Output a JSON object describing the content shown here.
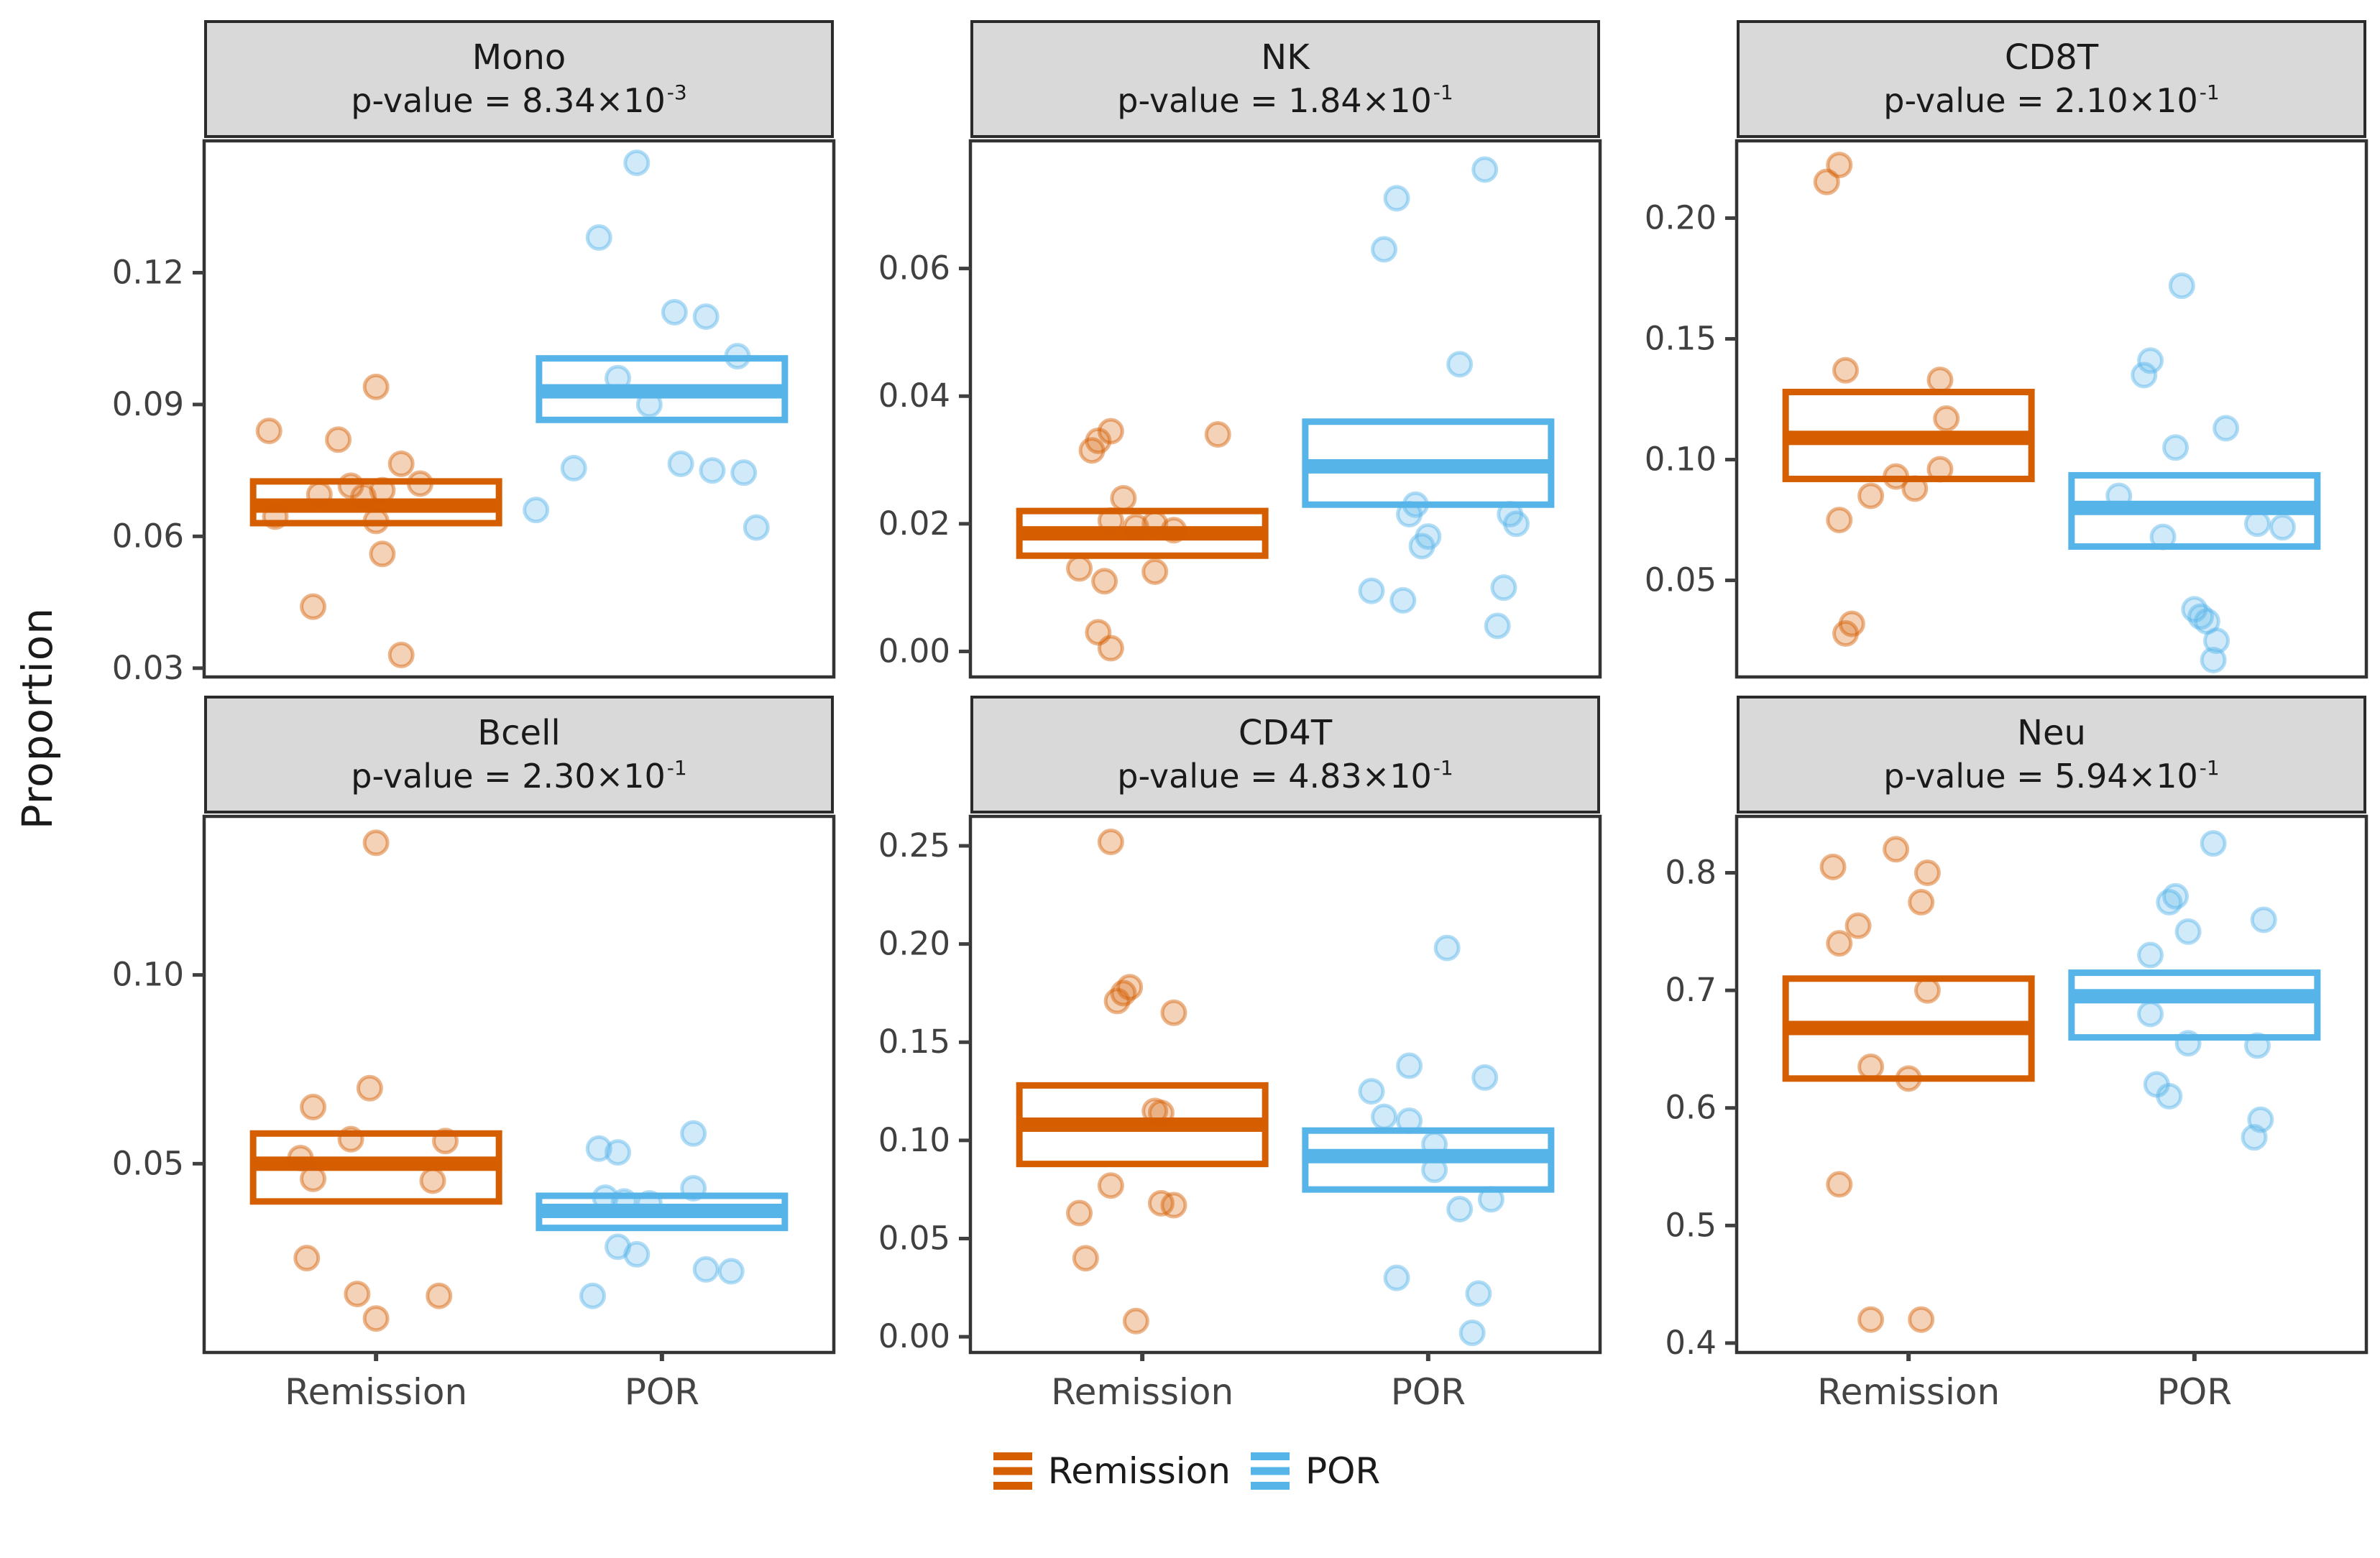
{
  "figure": {
    "ylab": "Proportion",
    "x_categories": [
      "Remission",
      "POR"
    ],
    "legend": [
      {
        "label": "Remission",
        "color": "#D55E00"
      },
      {
        "label": "POR",
        "color": "#56B4E9"
      }
    ],
    "strip_bg": "#d9d9d9",
    "panel_border": "#333333",
    "tick_color": "#404040"
  },
  "chart_data": [
    {
      "type": "scatter",
      "mark": "crossbar+jitter",
      "facet": "Mono",
      "pvalue_base": "p-value = 8.34×10",
      "pvalue_exp": "-3",
      "ylim": [
        0.028,
        0.15
      ],
      "yticks": [
        0.03,
        0.06,
        0.09,
        0.12
      ],
      "ytick_labels": [
        "0.03",
        "0.06",
        "0.09",
        "0.12"
      ],
      "groups": [
        {
          "name": "Remission",
          "color": "#D55E00",
          "box": {
            "lower": 0.063,
            "mid": 0.067,
            "upper": 0.0725
          },
          "points": [
            [
              -0.17,
              0.084
            ],
            [
              0.0,
              0.094
            ],
            [
              -0.06,
              0.082
            ],
            [
              0.04,
              0.0765
            ],
            [
              0.07,
              0.072
            ],
            [
              -0.04,
              0.0715
            ],
            [
              0.01,
              0.0705
            ],
            [
              -0.09,
              0.0695
            ],
            [
              -0.02,
              0.069
            ],
            [
              -0.16,
              0.0645
            ],
            [
              0.0,
              0.0635
            ],
            [
              0.01,
              0.056
            ],
            [
              -0.1,
              0.044
            ],
            [
              0.04,
              0.033
            ]
          ]
        },
        {
          "name": "POR",
          "color": "#56B4E9",
          "box": {
            "lower": 0.0865,
            "mid": 0.093,
            "upper": 0.1005
          },
          "points": [
            [
              -0.04,
              0.145
            ],
            [
              -0.1,
              0.128
            ],
            [
              0.02,
              0.111
            ],
            [
              0.07,
              0.11
            ],
            [
              0.12,
              0.101
            ],
            [
              -0.07,
              0.096
            ],
            [
              -0.02,
              0.09
            ],
            [
              -0.14,
              0.0755
            ],
            [
              0.03,
              0.0765
            ],
            [
              0.08,
              0.075
            ],
            [
              0.13,
              0.0745
            ],
            [
              -0.2,
              0.066
            ],
            [
              0.15,
              0.062
            ]
          ]
        }
      ]
    },
    {
      "type": "scatter",
      "mark": "crossbar+jitter",
      "facet": "NK",
      "pvalue_base": "p-value = 1.84×10",
      "pvalue_exp": "-1",
      "ylim": [
        -0.004,
        0.08
      ],
      "yticks": [
        0.0,
        0.02,
        0.04,
        0.06
      ],
      "ytick_labels": [
        "0.00",
        "0.02",
        "0.04",
        "0.06"
      ],
      "groups": [
        {
          "name": "Remission",
          "color": "#D55E00",
          "box": {
            "lower": 0.015,
            "mid": 0.0185,
            "upper": 0.022
          },
          "points": [
            [
              -0.05,
              0.0345
            ],
            [
              0.12,
              0.034
            ],
            [
              -0.07,
              0.033
            ],
            [
              -0.08,
              0.0315
            ],
            [
              -0.03,
              0.024
            ],
            [
              -0.05,
              0.0205
            ],
            [
              0.02,
              0.02
            ],
            [
              -0.01,
              0.0195
            ],
            [
              0.05,
              0.019
            ],
            [
              -0.1,
              0.013
            ],
            [
              0.02,
              0.0125
            ],
            [
              -0.06,
              0.011
            ],
            [
              -0.07,
              0.003
            ],
            [
              -0.05,
              0.0005
            ]
          ]
        },
        {
          "name": "POR",
          "color": "#56B4E9",
          "box": {
            "lower": 0.023,
            "mid": 0.029,
            "upper": 0.036
          },
          "points": [
            [
              0.09,
              0.0755
            ],
            [
              -0.05,
              0.071
            ],
            [
              -0.07,
              0.063
            ],
            [
              0.05,
              0.045
            ],
            [
              -0.02,
              0.023
            ],
            [
              -0.03,
              0.0215
            ],
            [
              0.13,
              0.0215
            ],
            [
              0.14,
              0.02
            ],
            [
              0.0,
              0.018
            ],
            [
              -0.01,
              0.0165
            ],
            [
              -0.09,
              0.0095
            ],
            [
              -0.04,
              0.008
            ],
            [
              0.12,
              0.01
            ],
            [
              0.11,
              0.004
            ]
          ]
        }
      ]
    },
    {
      "type": "scatter",
      "mark": "crossbar+jitter",
      "facet": "CD8T",
      "pvalue_base": "p-value = 2.10×10",
      "pvalue_exp": "-1",
      "ylim": [
        0.01,
        0.232
      ],
      "yticks": [
        0.05,
        0.1,
        0.15,
        0.2
      ],
      "ytick_labels": [
        "0.05",
        "0.10",
        "0.15",
        "0.20"
      ],
      "groups": [
        {
          "name": "Remission",
          "color": "#D55E00",
          "box": {
            "lower": 0.092,
            "mid": 0.109,
            "upper": 0.128
          },
          "points": [
            [
              -0.11,
              0.222
            ],
            [
              -0.13,
              0.215
            ],
            [
              -0.1,
              0.137
            ],
            [
              0.05,
              0.133
            ],
            [
              0.06,
              0.117
            ],
            [
              0.05,
              0.096
            ],
            [
              -0.02,
              0.093
            ],
            [
              0.01,
              0.088
            ],
            [
              -0.06,
              0.085
            ],
            [
              -0.11,
              0.075
            ],
            [
              -0.09,
              0.032
            ],
            [
              -0.1,
              0.028
            ]
          ]
        },
        {
          "name": "POR",
          "color": "#56B4E9",
          "box": {
            "lower": 0.064,
            "mid": 0.08,
            "upper": 0.0935
          },
          "points": [
            [
              -0.02,
              0.172
            ],
            [
              -0.07,
              0.141
            ],
            [
              -0.08,
              0.135
            ],
            [
              0.05,
              0.113
            ],
            [
              -0.03,
              0.105
            ],
            [
              -0.12,
              0.085
            ],
            [
              0.1,
              0.0735
            ],
            [
              0.14,
              0.072
            ],
            [
              -0.05,
              0.068
            ],
            [
              0.0,
              0.038
            ],
            [
              0.01,
              0.035
            ],
            [
              0.02,
              0.033
            ],
            [
              0.035,
              0.025
            ],
            [
              0.03,
              0.017
            ]
          ]
        }
      ]
    },
    {
      "type": "scatter",
      "mark": "crossbar+jitter",
      "facet": "Bcell",
      "pvalue_base": "p-value = 2.30×10",
      "pvalue_exp": "-1",
      "ylim": [
        0.0,
        0.142
      ],
      "yticks": [
        0.05,
        0.1
      ],
      "ytick_labels": [
        "0.05",
        "0.10"
      ],
      "groups": [
        {
          "name": "Remission",
          "color": "#D55E00",
          "box": {
            "lower": 0.04,
            "mid": 0.05,
            "upper": 0.058
          },
          "points": [
            [
              0.0,
              0.135
            ],
            [
              -0.01,
              0.07
            ],
            [
              -0.1,
              0.065
            ],
            [
              -0.04,
              0.0565
            ],
            [
              0.11,
              0.056
            ],
            [
              -0.12,
              0.0515
            ],
            [
              -0.1,
              0.046
            ],
            [
              0.09,
              0.0455
            ],
            [
              -0.11,
              0.025
            ],
            [
              -0.03,
              0.0155
            ],
            [
              0.1,
              0.015
            ],
            [
              0.0,
              0.009
            ]
          ]
        },
        {
          "name": "POR",
          "color": "#56B4E9",
          "box": {
            "lower": 0.033,
            "mid": 0.0375,
            "upper": 0.0415
          },
          "points": [
            [
              0.05,
              0.058
            ],
            [
              -0.1,
              0.054
            ],
            [
              -0.07,
              0.053
            ],
            [
              0.05,
              0.0435
            ],
            [
              -0.09,
              0.041
            ],
            [
              -0.06,
              0.04
            ],
            [
              -0.02,
              0.0395
            ],
            [
              -0.07,
              0.028
            ],
            [
              -0.04,
              0.026
            ],
            [
              0.07,
              0.022
            ],
            [
              0.11,
              0.0215
            ],
            [
              -0.11,
              0.015
            ]
          ]
        }
      ]
    },
    {
      "type": "scatter",
      "mark": "crossbar+jitter",
      "facet": "CD4T",
      "pvalue_base": "p-value = 4.83×10",
      "pvalue_exp": "-1",
      "ylim": [
        -0.008,
        0.265
      ],
      "yticks": [
        0.0,
        0.05,
        0.1,
        0.15,
        0.2,
        0.25
      ],
      "ytick_labels": [
        "0.00",
        "0.05",
        "0.10",
        "0.15",
        "0.20",
        "0.25"
      ],
      "groups": [
        {
          "name": "Remission",
          "color": "#D55E00",
          "box": {
            "lower": 0.088,
            "mid": 0.108,
            "upper": 0.128
          },
          "points": [
            [
              -0.05,
              0.252
            ],
            [
              -0.02,
              0.178
            ],
            [
              -0.03,
              0.175
            ],
            [
              -0.04,
              0.171
            ],
            [
              0.05,
              0.165
            ],
            [
              0.02,
              0.115
            ],
            [
              0.03,
              0.114
            ],
            [
              -0.05,
              0.077
            ],
            [
              0.03,
              0.068
            ],
            [
              0.05,
              0.067
            ],
            [
              -0.1,
              0.063
            ],
            [
              -0.09,
              0.04
            ],
            [
              -0.01,
              0.008
            ]
          ]
        },
        {
          "name": "POR",
          "color": "#56B4E9",
          "box": {
            "lower": 0.075,
            "mid": 0.092,
            "upper": 0.105
          },
          "points": [
            [
              0.03,
              0.198
            ],
            [
              -0.03,
              0.138
            ],
            [
              0.09,
              0.132
            ],
            [
              -0.09,
              0.125
            ],
            [
              -0.07,
              0.112
            ],
            [
              -0.03,
              0.11
            ],
            [
              0.01,
              0.098
            ],
            [
              0.01,
              0.085
            ],
            [
              0.1,
              0.07
            ],
            [
              0.05,
              0.065
            ],
            [
              -0.05,
              0.03
            ],
            [
              0.08,
              0.022
            ],
            [
              0.07,
              0.002
            ]
          ]
        }
      ]
    },
    {
      "type": "scatter",
      "mark": "crossbar+jitter",
      "facet": "Neu",
      "pvalue_base": "p-value = 5.94×10",
      "pvalue_exp": "-1",
      "ylim": [
        0.392,
        0.848
      ],
      "yticks": [
        0.4,
        0.5,
        0.6,
        0.7,
        0.8
      ],
      "ytick_labels": [
        "0.4",
        "0.5",
        "0.6",
        "0.7",
        "0.8"
      ],
      "groups": [
        {
          "name": "Remission",
          "color": "#D55E00",
          "box": {
            "lower": 0.625,
            "mid": 0.668,
            "upper": 0.71
          },
          "points": [
            [
              -0.02,
              0.82
            ],
            [
              -0.12,
              0.805
            ],
            [
              0.03,
              0.8
            ],
            [
              0.02,
              0.775
            ],
            [
              -0.08,
              0.755
            ],
            [
              -0.11,
              0.74
            ],
            [
              0.03,
              0.7
            ],
            [
              -0.06,
              0.635
            ],
            [
              0.0,
              0.625
            ],
            [
              -0.11,
              0.535
            ],
            [
              -0.06,
              0.42
            ],
            [
              0.02,
              0.42
            ]
          ]
        },
        {
          "name": "POR",
          "color": "#56B4E9",
          "box": {
            "lower": 0.66,
            "mid": 0.695,
            "upper": 0.715
          },
          "points": [
            [
              0.03,
              0.825
            ],
            [
              -0.03,
              0.78
            ],
            [
              -0.04,
              0.775
            ],
            [
              0.11,
              0.76
            ],
            [
              -0.01,
              0.75
            ],
            [
              -0.07,
              0.73
            ],
            [
              -0.07,
              0.68
            ],
            [
              -0.01,
              0.655
            ],
            [
              0.1,
              0.653
            ],
            [
              -0.06,
              0.62
            ],
            [
              -0.04,
              0.61
            ],
            [
              0.105,
              0.59
            ],
            [
              0.095,
              0.575
            ]
          ]
        }
      ]
    }
  ]
}
